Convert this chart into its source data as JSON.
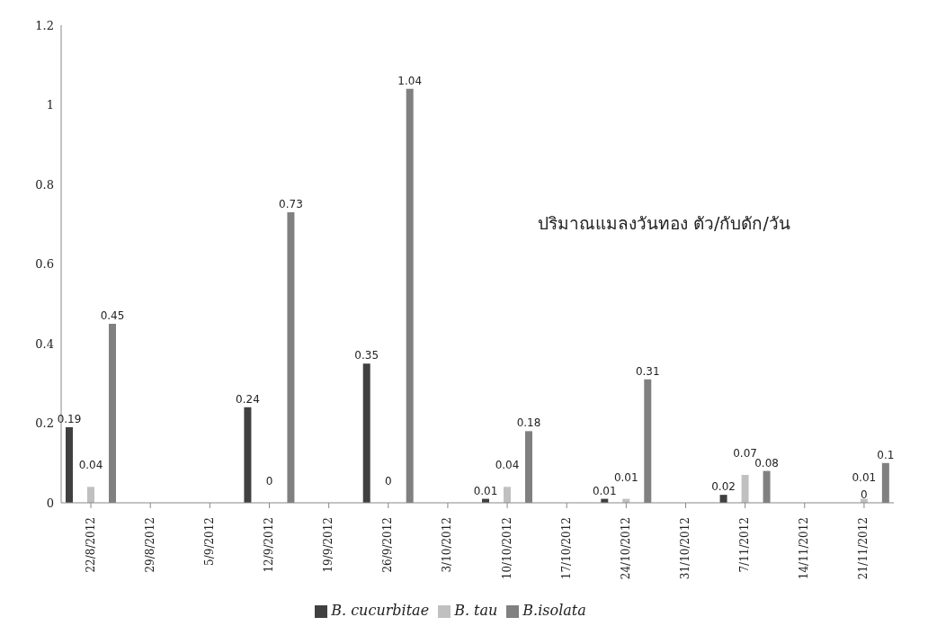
{
  "chart_data": {
    "type": "bar",
    "categories": [
      "22/8/2012",
      "29/8/2012",
      "5/9/2012",
      "12/9/2012",
      "19/9/2012",
      "26/9/2012",
      "3/10/2012",
      "10/10/2012",
      "17/10/2012",
      "24/10/2012",
      "31/10/2012",
      "7/11/2012",
      "14/11/2012",
      "21/11/2012"
    ],
    "series": [
      {
        "name": "B. cucurbitae",
        "color": "#404040",
        "values": [
          0.19,
          null,
          null,
          0.24,
          null,
          0.35,
          null,
          0.01,
          null,
          0.01,
          null,
          0.02,
          null,
          0
        ]
      },
      {
        "name": "B. tau",
        "color": "#c0c0c0",
        "values": [
          0.04,
          null,
          null,
          0,
          null,
          0,
          null,
          0.04,
          null,
          0.01,
          null,
          0.07,
          null,
          0.01
        ]
      },
      {
        "name": "B.isolata",
        "color": "#808080",
        "values": [
          0.45,
          null,
          null,
          0.73,
          null,
          1.04,
          null,
          0.18,
          null,
          0.31,
          null,
          0.08,
          null,
          0.1
        ]
      }
    ],
    "ylim": [
      0,
      1.2
    ],
    "yticks": [
      0,
      0.2,
      0.4,
      0.6,
      0.8,
      1,
      1.2
    ],
    "annotations": [
      "ปริมาณแมลงวันทอง ตัว/กับดัก/วัน"
    ],
    "data_labels": true,
    "grid": false,
    "legend": "bottom"
  }
}
